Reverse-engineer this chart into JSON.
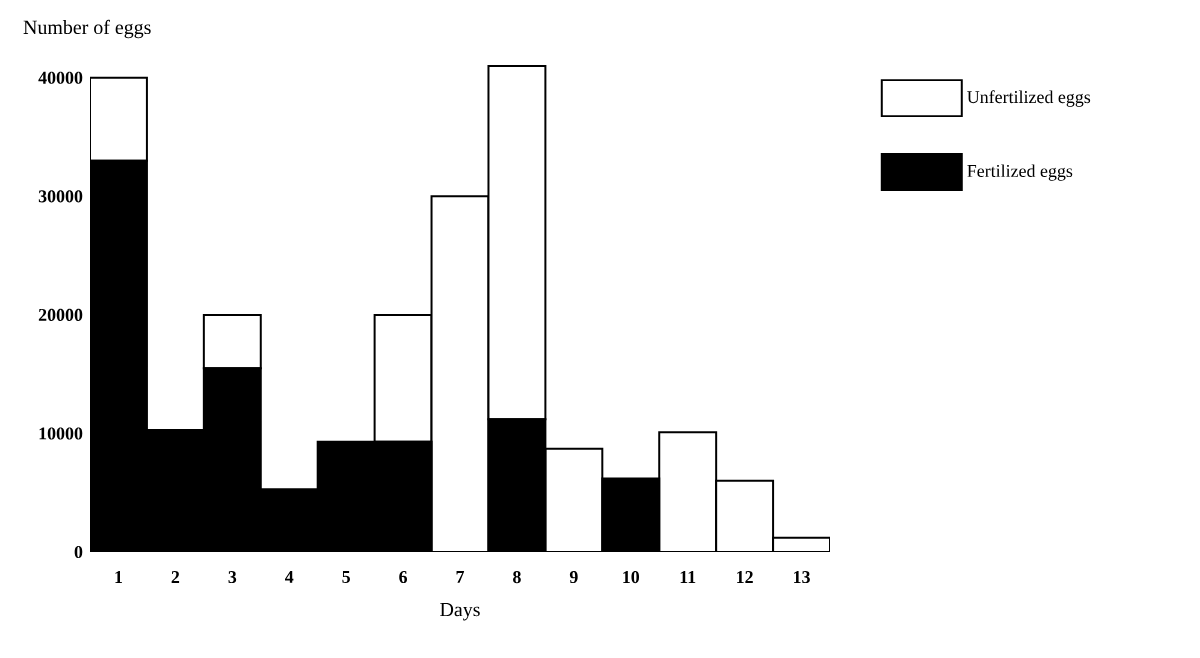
{
  "chart_data": {
    "type": "bar",
    "stacked": true,
    "xlabel": "Days",
    "ylabel": "Number of eggs",
    "categories": [
      "1",
      "2",
      "3",
      "4",
      "5",
      "6",
      "7",
      "8",
      "9",
      "10",
      "11",
      "12",
      "13"
    ],
    "series": [
      {
        "name": "Fertilized eggs",
        "color": "#000000",
        "values": [
          33000,
          10300,
          15500,
          5300,
          9300,
          9300,
          0,
          11200,
          0,
          6200,
          0,
          0,
          0
        ]
      },
      {
        "name": "Unfertilized eggs",
        "color": "#ffffff",
        "values": [
          7000,
          0,
          4500,
          0,
          0,
          10700,
          30000,
          29800,
          8700,
          0,
          10100,
          6000,
          1200
        ]
      }
    ],
    "ylim": [
      0,
      41500
    ],
    "yticks": [
      0,
      10000,
      20000,
      30000,
      40000
    ],
    "legend": "top right"
  }
}
